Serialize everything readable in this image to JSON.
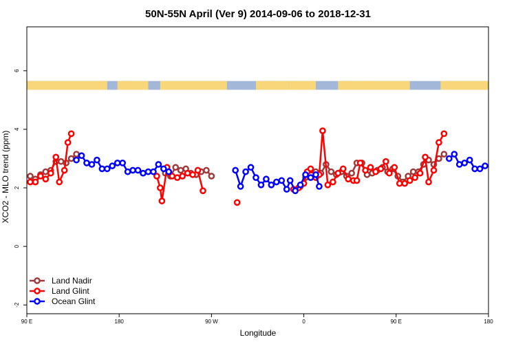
{
  "chart_data": {
    "type": "line",
    "title": "50N-55N April (Ver 9)   2014-09-06 to 2018-12-31",
    "xlabel": "Longitude",
    "ylabel": "XCO2 - MLO trend (ppm)",
    "xlim": [
      -90,
      180
    ],
    "ylim": [
      -2.3,
      7.5
    ],
    "x_ticks": [
      {
        "value": -90,
        "label": "90 E"
      },
      {
        "value": -36,
        "label": "180"
      },
      {
        "value": 18,
        "label": "90 W"
      },
      {
        "value": 72,
        "label": "0"
      },
      {
        "value": 126,
        "label": "90 E"
      },
      {
        "value": 180,
        "label": "180"
      }
    ],
    "y_ticks": [
      {
        "value": -2,
        "label": "-2"
      },
      {
        "value": 0,
        "label": "0"
      },
      {
        "value": 2,
        "label": "2"
      },
      {
        "value": 4,
        "label": "4"
      },
      {
        "value": 6,
        "label": "6"
      }
    ],
    "grid": false,
    "legend_position": "bottom-left",
    "land_ocean_band": {
      "y_range": [
        5.35,
        5.65
      ],
      "ocean_color": "#a3b8d8",
      "land_color": "#f7d77a",
      "land_spans": [
        [
          -90,
          -43
        ],
        [
          -37,
          -19
        ],
        [
          -12,
          27
        ],
        [
          44,
          63
        ],
        [
          63,
          79
        ],
        [
          92,
          110
        ],
        [
          106,
          134
        ],
        [
          152,
          180
        ]
      ]
    },
    "series": [
      {
        "name": "Land Nadir",
        "color": "#a03a3a",
        "points": [
          [
            -88,
            2.4
          ],
          [
            -85,
            2.3
          ],
          [
            -82,
            2.45
          ],
          [
            -79,
            2.55
          ],
          [
            -76,
            2.6
          ],
          [
            -73,
            2.9
          ],
          [
            -70,
            2.9
          ],
          [
            -67,
            2.85
          ],
          [
            -64,
            3.0
          ],
          [
            -61,
            3.15
          ],
          null,
          [
            -9,
            2.5
          ],
          [
            -6,
            2.4
          ],
          [
            -3,
            2.7
          ],
          [
            0,
            2.6
          ],
          [
            3,
            2.65
          ],
          [
            6,
            2.5
          ],
          [
            9,
            2.45
          ],
          [
            12,
            2.55
          ],
          [
            15,
            2.6
          ],
          [
            18,
            2.4
          ],
          null,
          [
            70,
            2.05
          ],
          [
            73,
            2.35
          ],
          [
            76,
            2.6
          ],
          [
            79,
            2.55
          ],
          [
            82,
            2.5
          ],
          [
            85,
            2.8
          ],
          [
            88,
            2.55
          ],
          [
            91,
            2.45
          ],
          [
            94,
            2.55
          ],
          [
            97,
            2.4
          ],
          [
            100,
            2.5
          ],
          [
            103,
            2.85
          ],
          [
            106,
            2.85
          ],
          [
            109,
            2.45
          ],
          [
            112,
            2.5
          ],
          [
            115,
            2.6
          ],
          [
            118,
            2.7
          ],
          [
            121,
            2.55
          ],
          [
            124,
            2.65
          ],
          [
            127,
            2.4
          ],
          [
            130,
            2.2
          ],
          [
            133,
            2.4
          ],
          [
            136,
            2.55
          ],
          [
            139,
            2.55
          ],
          [
            142,
            2.8
          ],
          [
            145,
            2.95
          ],
          [
            148,
            2.8
          ],
          [
            151,
            3.0
          ],
          [
            154,
            3.15
          ]
        ]
      },
      {
        "name": "Land Glint",
        "color": "#ff0000",
        "points": [
          [
            -88,
            2.2
          ],
          [
            -85,
            2.2
          ],
          [
            -82,
            2.4
          ],
          [
            -79,
            2.3
          ],
          [
            -76,
            2.5
          ],
          [
            -73,
            3.05
          ],
          [
            -71,
            2.2
          ],
          [
            -68,
            2.6
          ],
          [
            -66,
            3.55
          ],
          [
            -64,
            3.85
          ],
          null,
          [
            -14,
            2.4
          ],
          [
            -12,
            2.0
          ],
          [
            -11,
            1.55
          ],
          [
            -8,
            2.7
          ],
          [
            -5,
            2.4
          ],
          [
            -2,
            2.35
          ],
          [
            1,
            2.4
          ],
          [
            4,
            2.5
          ],
          [
            7,
            2.45
          ],
          [
            10,
            2.6
          ],
          [
            13,
            1.9
          ],
          null,
          [
            33,
            1.5
          ],
          null,
          [
            66,
            1.95
          ],
          [
            69,
            2.0
          ],
          [
            72,
            2.15
          ],
          [
            74,
            2.55
          ],
          [
            76,
            2.65
          ],
          [
            79,
            2.35
          ],
          [
            81,
            2.45
          ],
          [
            83,
            3.95
          ],
          [
            86,
            2.1
          ],
          [
            89,
            2.2
          ],
          [
            92,
            2.5
          ],
          [
            95,
            2.65
          ],
          [
            98,
            2.3
          ],
          [
            101,
            2.25
          ],
          [
            103,
            2.25
          ],
          [
            105,
            2.85
          ],
          [
            108,
            2.6
          ],
          [
            111,
            2.7
          ],
          [
            114,
            2.55
          ],
          [
            117,
            2.65
          ],
          [
            120,
            2.9
          ],
          [
            122,
            2.5
          ],
          [
            125,
            2.7
          ],
          [
            128,
            2.15
          ],
          [
            131,
            2.15
          ],
          [
            134,
            2.25
          ],
          [
            137,
            2.35
          ],
          [
            140,
            2.5
          ],
          [
            143,
            3.05
          ],
          [
            145,
            2.2
          ],
          [
            148,
            2.6
          ],
          [
            151,
            3.55
          ],
          [
            154,
            3.85
          ]
        ]
      },
      {
        "name": "Ocean Glint",
        "color": "#0000ff",
        "points": [
          [
            -61,
            2.95
          ],
          [
            -58,
            3.1
          ],
          [
            -55,
            2.85
          ],
          [
            -52,
            2.8
          ],
          [
            -49,
            2.95
          ],
          [
            -46,
            2.65
          ],
          [
            -43,
            2.65
          ],
          [
            -40,
            2.75
          ],
          [
            -37,
            2.85
          ],
          [
            -34,
            2.85
          ],
          [
            -31,
            2.55
          ],
          [
            -28,
            2.6
          ],
          [
            -25,
            2.6
          ],
          [
            -22,
            2.5
          ],
          [
            -19,
            2.55
          ],
          [
            -16,
            2.55
          ],
          [
            -13,
            2.8
          ],
          [
            -10,
            2.65
          ],
          [
            -7,
            2.55
          ],
          null,
          [
            32,
            2.6
          ],
          [
            35,
            2.05
          ],
          [
            38,
            2.55
          ],
          [
            41,
            2.7
          ],
          [
            44,
            2.35
          ],
          [
            47,
            2.1
          ],
          [
            50,
            2.3
          ],
          [
            53,
            2.1
          ],
          [
            56,
            2.2
          ],
          [
            59,
            2.25
          ],
          [
            62,
            1.95
          ],
          [
            64,
            2.25
          ],
          [
            67,
            1.9
          ],
          [
            70,
            2.1
          ],
          [
            73,
            2.45
          ],
          [
            76,
            2.35
          ],
          [
            79,
            2.45
          ],
          [
            81,
            2.05
          ],
          null,
          [
            157,
            3.0
          ],
          [
            160,
            3.15
          ],
          [
            163,
            2.8
          ],
          [
            166,
            2.85
          ],
          [
            169,
            2.95
          ],
          [
            172,
            2.65
          ],
          [
            175,
            2.65
          ],
          [
            178,
            2.75
          ]
        ]
      }
    ]
  }
}
